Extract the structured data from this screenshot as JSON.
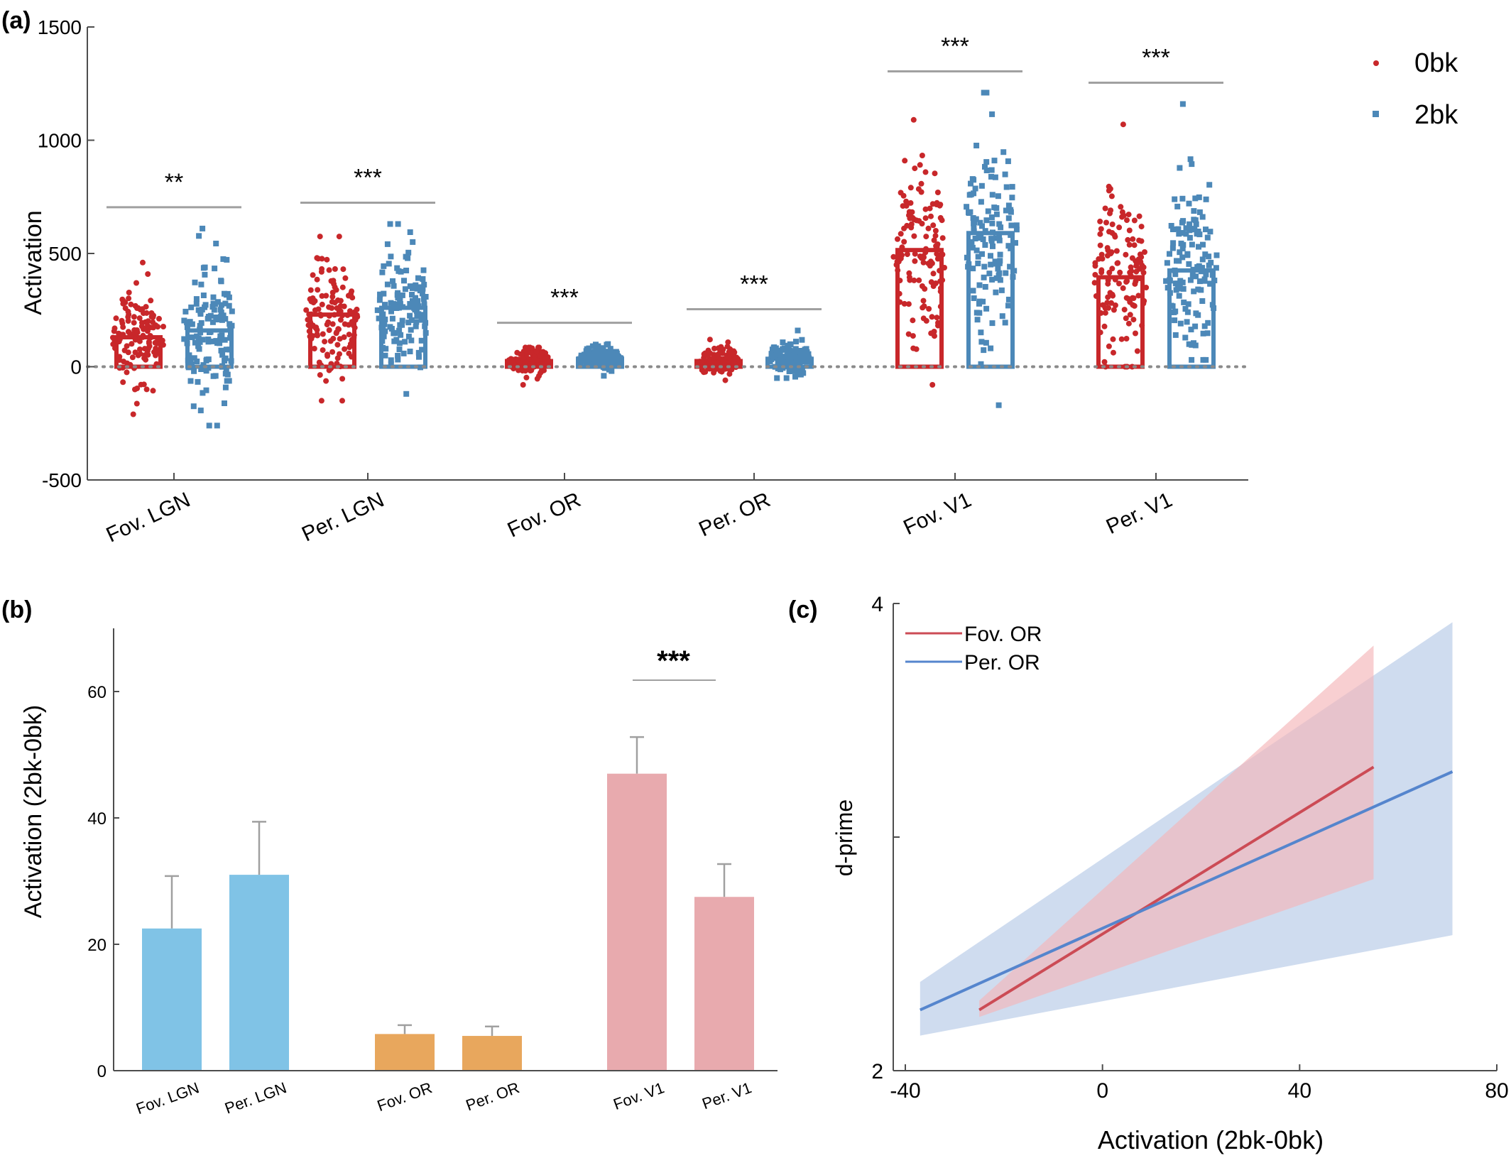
{
  "colors": {
    "red": "#c8272a",
    "blue": "#4c88b8",
    "light_blue": "#80c3e6",
    "orange": "#e8a75d",
    "pink": "#e8aaae",
    "line_red": "#cc4b55",
    "line_blue": "#5585cd",
    "band_red": "#f4b5b8",
    "band_blue": "#a7bfe2",
    "axis": "#4d4d4d",
    "gray": "#a0a0a0"
  },
  "chart_data": [
    {
      "type": "bar",
      "panel_label": "(a)",
      "ylabel": "Activation",
      "xlabel": "",
      "ylim": [
        -500,
        1500
      ],
      "yticks": [
        -500,
        0,
        500,
        1000,
        1500
      ],
      "categories": [
        "Fov. LGN",
        "Per. LGN",
        "Fov. OR",
        "Per. OR",
        "Fov. V1",
        "Per. V1"
      ],
      "series": [
        {
          "name": "0bk",
          "values": [
            130,
            230,
            25,
            25,
            515,
            395
          ]
        },
        {
          "name": "2bk",
          "values": [
            160,
            260,
            35,
            35,
            590,
            425
          ]
        }
      ],
      "points": [
        {
          "n": 130,
          "center": 130,
          "min": -210,
          "max": 460
        },
        {
          "n": 130,
          "center": 160,
          "min": -260,
          "max": 610
        },
        {
          "n": 130,
          "center": 230,
          "min": -150,
          "max": 575
        },
        {
          "n": 130,
          "center": 260,
          "min": -120,
          "max": 630
        },
        {
          "n": 130,
          "center": 25,
          "min": -80,
          "max": 85
        },
        {
          "n": 130,
          "center": 35,
          "min": -40,
          "max": 100
        },
        {
          "n": 130,
          "center": 25,
          "min": -60,
          "max": 120
        },
        {
          "n": 130,
          "center": 35,
          "min": -50,
          "max": 160
        },
        {
          "n": 130,
          "center": 515,
          "min": -80,
          "max": 1090
        },
        {
          "n": 130,
          "center": 590,
          "min": -170,
          "max": 1210
        },
        {
          "n": 130,
          "center": 395,
          "min": 0,
          "max": 1070
        },
        {
          "n": 130,
          "center": 425,
          "min": 30,
          "max": 1160
        }
      ],
      "reference_line": 0,
      "significance": [
        "**",
        "***",
        "***",
        "***",
        "***",
        "***"
      ],
      "legend": [
        "0bk",
        "2bk"
      ],
      "legend_position": "top-right"
    },
    {
      "type": "bar",
      "panel_label": "(b)",
      "ylabel": "Activation (2bk-0bk)",
      "xlabel": "",
      "ylim": [
        0,
        70
      ],
      "yticks": [
        0,
        20,
        40,
        60
      ],
      "categories": [
        "Fov. LGN",
        "Per. LGN",
        "Fov. OR",
        "Per. OR",
        "Fov. V1",
        "Per. V1"
      ],
      "values": [
        22.5,
        31,
        5.8,
        5.5,
        47,
        27.5
      ],
      "errors": [
        8.3,
        8.4,
        1.4,
        1.5,
        5.8,
        5.2
      ],
      "significance": [
        {
          "between": [
            4,
            5
          ],
          "label": "***"
        }
      ]
    },
    {
      "type": "line",
      "panel_label": "(c)",
      "xlabel": "Activation (2bk-0bk)",
      "ylabel": "d-prime",
      "xlim": [
        -45,
        80
      ],
      "xticks": [
        -40,
        0,
        40,
        80
      ],
      "ylim": [
        2,
        4
      ],
      "yticks": [
        2,
        4
      ],
      "series": [
        {
          "name": "Fov. OR",
          "x": [
            -25,
            55
          ],
          "y": [
            2.26,
            3.3
          ],
          "ci_x": [
            -25,
            55
          ],
          "ci_lower": [
            2.23,
            2.82
          ],
          "ci_upper": [
            2.3,
            3.82
          ]
        },
        {
          "name": "Per. OR",
          "x": [
            -37,
            71
          ],
          "y": [
            2.26,
            3.28
          ],
          "ci_x": [
            -37,
            71
          ],
          "ci_lower": [
            2.15,
            2.58
          ],
          "ci_upper": [
            2.38,
            3.92
          ]
        }
      ],
      "legend_position": "top-left"
    }
  ]
}
